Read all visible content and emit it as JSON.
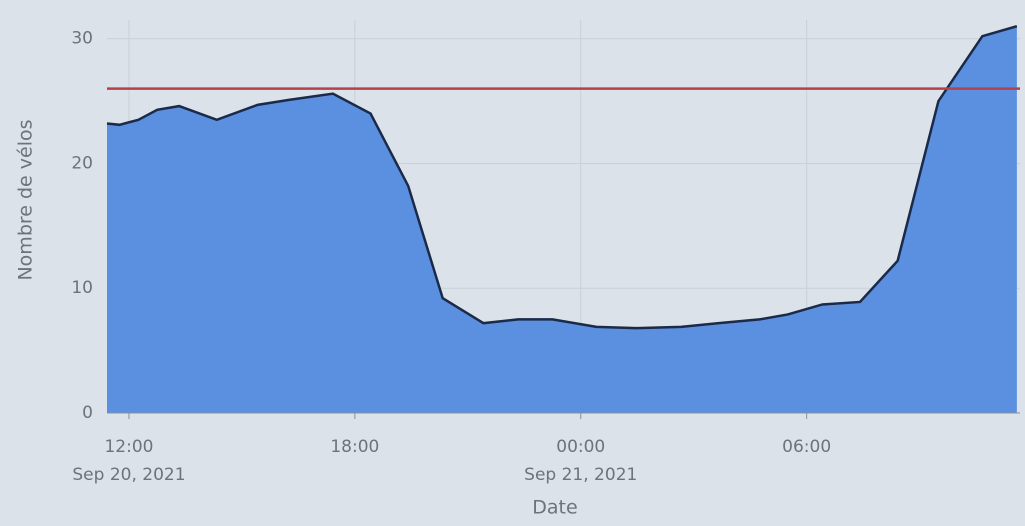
{
  "chart_data": {
    "type": "area",
    "x_label": "Date",
    "y_label": "Nombre de vélos",
    "x": [
      "2021-09-20T11:25",
      "2021-09-20T11:45",
      "2021-09-20T12:15",
      "2021-09-20T12:45",
      "2021-09-20T13:20",
      "2021-09-20T14:20",
      "2021-09-20T15:25",
      "2021-09-20T16:15",
      "2021-09-20T17:25",
      "2021-09-20T18:25",
      "2021-09-20T19:25",
      "2021-09-20T20:20",
      "2021-09-20T21:25",
      "2021-09-20T22:20",
      "2021-09-20T23:15",
      "2021-09-21T00:25",
      "2021-09-21T01:30",
      "2021-09-21T02:40",
      "2021-09-21T03:40",
      "2021-09-21T04:45",
      "2021-09-21T05:30",
      "2021-09-21T06:25",
      "2021-09-21T07:25",
      "2021-09-21T08:25",
      "2021-09-21T09:30",
      "2021-09-21T10:40",
      "2021-09-21T11:35"
    ],
    "series": [
      {
        "color": "#5b8fe0",
        "line_color": "#1b2a48",
        "values": [
          23.2,
          23.1,
          23.5,
          24.3,
          24.6,
          23.5,
          24.7,
          25.1,
          25.6,
          24.0,
          18.2,
          9.2,
          7.2,
          7.5,
          7.5,
          6.9,
          6.8,
          6.9,
          7.2,
          7.5,
          7.9,
          8.7,
          8.9,
          12.2,
          25.0,
          30.2,
          31.0
        ]
      }
    ],
    "reference_line": {
      "value": 26,
      "color": "#b5404a"
    },
    "xlim": [
      "2021-09-20T11:25",
      "2021-09-21T11:40"
    ],
    "xticks": [
      {
        "value": "2021-09-20T12:00",
        "label": "12:00",
        "sublabel": "Sep 20, 2021"
      },
      {
        "value": "2021-09-20T18:00",
        "label": "18:00"
      },
      {
        "value": "2021-09-21T00:00",
        "label": "00:00",
        "sublabel": "Sep 21, 2021"
      },
      {
        "value": "2021-09-21T06:00",
        "label": "06:00"
      }
    ],
    "ylim": [
      0,
      31.5
    ],
    "yticks": [
      0,
      10,
      20,
      30
    ],
    "grid": true
  }
}
